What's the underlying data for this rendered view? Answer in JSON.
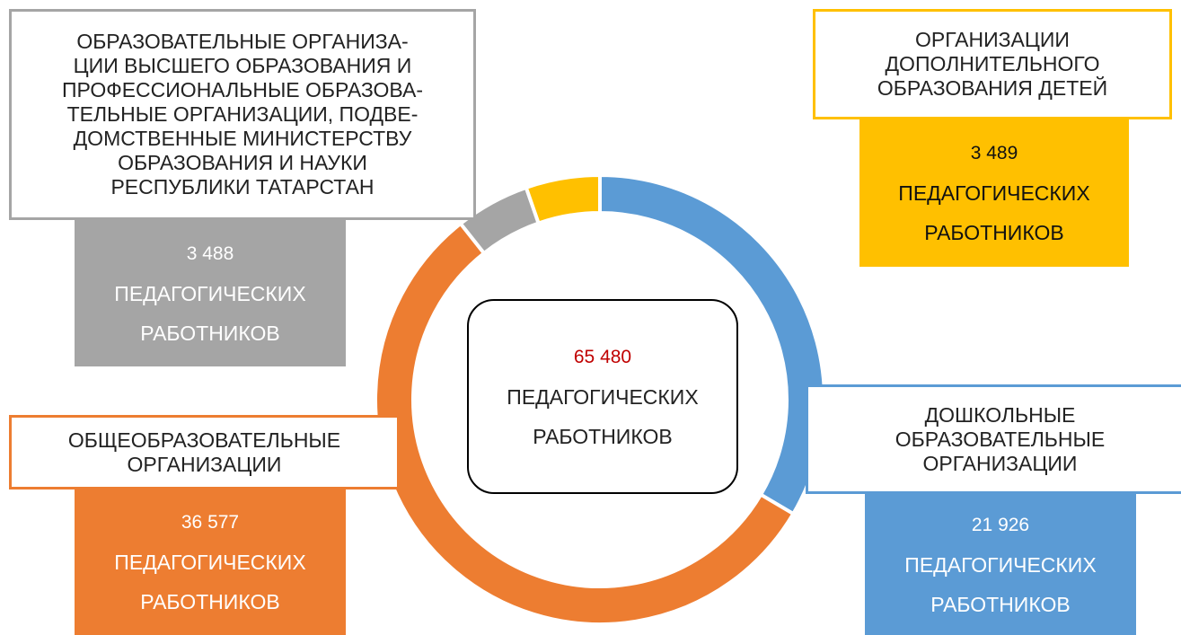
{
  "chart_data": {
    "type": "donut",
    "categories": [
      "ДОШКОЛЬНЫЕ\nОБРАЗОВАТЕЛЬНЫЕ\nОРГАНИЗАЦИИ",
      "ОБЩЕОБРАЗОВАТЕЛЬНЫЕ\nОРГАНИЗАЦИИ",
      "ОБРАЗОВАТЕЛЬНЫЕ ОРГАНИЗА-\nЦИИ ВЫСШЕГО ОБРАЗОВАНИЯ И\nПРОФЕССИОНАЛЬНЫЕ ОБРАЗОВА-\nТЕЛЬНЫЕ ОРГАНИЗАЦИИ, ПОДВЕ-\nДОМСТВЕННЫЕ МИНИСТЕРСТВУ\nОБРАЗОВАНИЯ И НАУКИ\nРЕСПУБЛИКИ ТАТАРСТАН",
      "ОРГАНИЗАЦИИ\nДОПОЛНИТЕЛЬНОГО\nОБРАЗОВАНИЯ ДЕТЕЙ"
    ],
    "values": [
      21926,
      36577,
      3488,
      3489
    ],
    "value_labels": [
      "21 926",
      "36 577",
      "3 488",
      "3 489"
    ],
    "colors": [
      "#5b9bd5",
      "#ed7d31",
      "#a5a5a5",
      "#ffc000"
    ],
    "unit_lines": [
      "ПЕДАГОГИЧЕСКИХ",
      "РАБОТНИКОВ"
    ],
    "center": {
      "value": 65480,
      "label": "65 480",
      "color": "#c00000"
    }
  }
}
